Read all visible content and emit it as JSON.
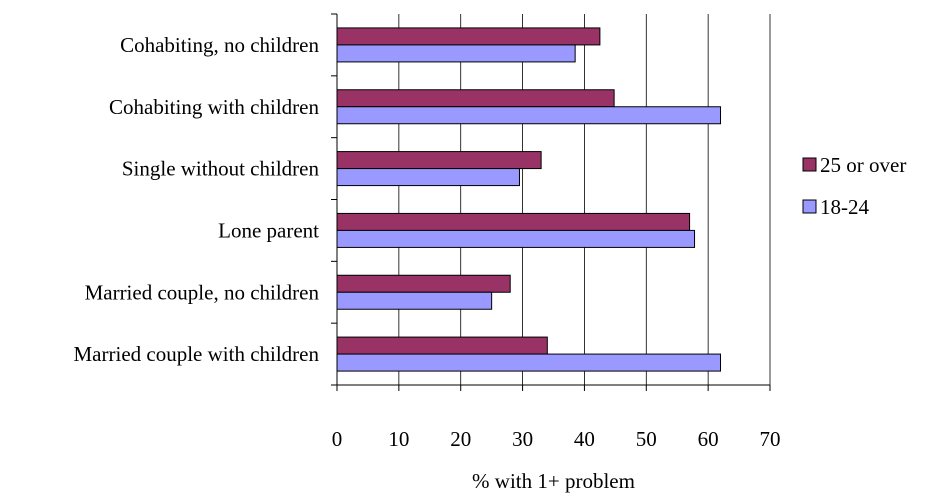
{
  "chart_data": {
    "type": "bar",
    "orientation": "horizontal",
    "categories": [
      "Cohabiting, no children",
      "Cohabiting with children",
      "Single without children",
      "Lone parent",
      "Married couple, no children",
      "Married couple with children"
    ],
    "series": [
      {
        "name": "25 or over",
        "color": "#993366",
        "values": [
          42.5,
          44.8,
          33.0,
          57.0,
          28.0,
          34.0
        ]
      },
      {
        "name": "18-24",
        "color": "#9999ff",
        "values": [
          38.5,
          62.0,
          29.5,
          57.8,
          25.0,
          62.0
        ]
      }
    ],
    "xlabel": "% with 1+ problem",
    "ylabel": "",
    "title": "",
    "xlim": [
      0,
      70
    ],
    "xticks": [
      0,
      10,
      20,
      30,
      40,
      50,
      60,
      70
    ],
    "grid": "vertical major gridlines",
    "legend": {
      "position": "right",
      "order": [
        "25 or over",
        "18-24"
      ]
    }
  }
}
